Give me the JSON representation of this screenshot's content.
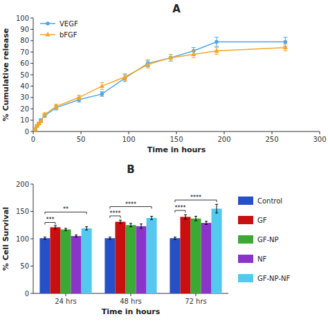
{
  "chart_data": [
    {
      "type": "line",
      "title": "A",
      "x_label": "Time in hours",
      "y_label": "% Cumulative release",
      "x": [
        1,
        2,
        4,
        6,
        8,
        12,
        24,
        48,
        72,
        96,
        120,
        144,
        168,
        192,
        264
      ],
      "series": [
        {
          "name": "VEGF",
          "color": "#4da6e8",
          "marker": "circle",
          "values": [
            0,
            2,
            5,
            7,
            10,
            14,
            21,
            28,
            33,
            47,
            60,
            65,
            71,
            79,
            79
          ],
          "yerr": [
            0,
            0.5,
            0.5,
            1,
            1,
            1.5,
            2,
            2,
            2,
            3,
            3,
            3,
            3,
            4,
            4
          ]
        },
        {
          "name": "bFGF",
          "color": "#f5a623",
          "marker": "triangle",
          "values": [
            0,
            2,
            5,
            7,
            9,
            15,
            22,
            30,
            40,
            48,
            59,
            65,
            68,
            71,
            74
          ],
          "yerr": [
            0,
            0.5,
            1,
            1,
            1,
            1.5,
            2,
            2,
            3,
            3,
            3,
            3,
            3,
            3,
            3
          ]
        }
      ],
      "xlim": [
        0,
        300
      ],
      "ylim": [
        0,
        100
      ],
      "xticks": [
        0,
        50,
        100,
        150,
        200,
        250,
        300
      ],
      "yticks": [
        0,
        10,
        20,
        30,
        40,
        50,
        60,
        70,
        80,
        90,
        100
      ],
      "grid": false,
      "legend": "upper left"
    },
    {
      "type": "bar",
      "title": "B",
      "x_label": "Time in hours",
      "y_label": "% Cell Survival",
      "categories": [
        "24 hrs",
        "48 hrs",
        "72 hrs"
      ],
      "series": [
        {
          "name": "Control",
          "color": "#2650c8",
          "values": [
            101,
            101,
            101
          ],
          "yerr": [
            2,
            2,
            2
          ]
        },
        {
          "name": "GF",
          "color": "#c81010",
          "values": [
            121,
            131,
            140
          ],
          "yerr": [
            3,
            3,
            4
          ]
        },
        {
          "name": "GF-NP",
          "color": "#3aaa35",
          "values": [
            117,
            125,
            137
          ],
          "yerr": [
            2,
            3,
            4
          ]
        },
        {
          "name": "NF",
          "color": "#8b35c8",
          "values": [
            105,
            123,
            129
          ],
          "yerr": [
            2,
            4,
            3
          ]
        },
        {
          "name": "GF-NP-NF",
          "color": "#55c8f0",
          "values": [
            119,
            138,
            155
          ],
          "yerr": [
            3,
            3,
            8
          ]
        }
      ],
      "ylim": [
        0,
        200
      ],
      "yticks": [
        0,
        50,
        100,
        150,
        200
      ],
      "grid": false,
      "legend": "right",
      "annotations": [
        {
          "text": "***",
          "category": "24 hrs",
          "series": [
            "Control",
            "GF"
          ],
          "y": 126
        },
        {
          "text": "**",
          "category": "24 hrs",
          "series": [
            "Control",
            "GF-NP-NF"
          ],
          "y": 145
        },
        {
          "text": "****",
          "category": "48 hrs",
          "series": [
            "Control",
            "GF"
          ],
          "y": 138
        },
        {
          "text": "****",
          "category": "48 hrs",
          "series": [
            "Control",
            "GF-NP-NF"
          ],
          "y": 155
        },
        {
          "text": "****",
          "category": "72 hrs",
          "series": [
            "Control",
            "GF"
          ],
          "y": 148
        },
        {
          "text": "****",
          "category": "72 hrs",
          "series": [
            "Control",
            "GF-NP-NF"
          ],
          "y": 167
        }
      ]
    }
  ]
}
